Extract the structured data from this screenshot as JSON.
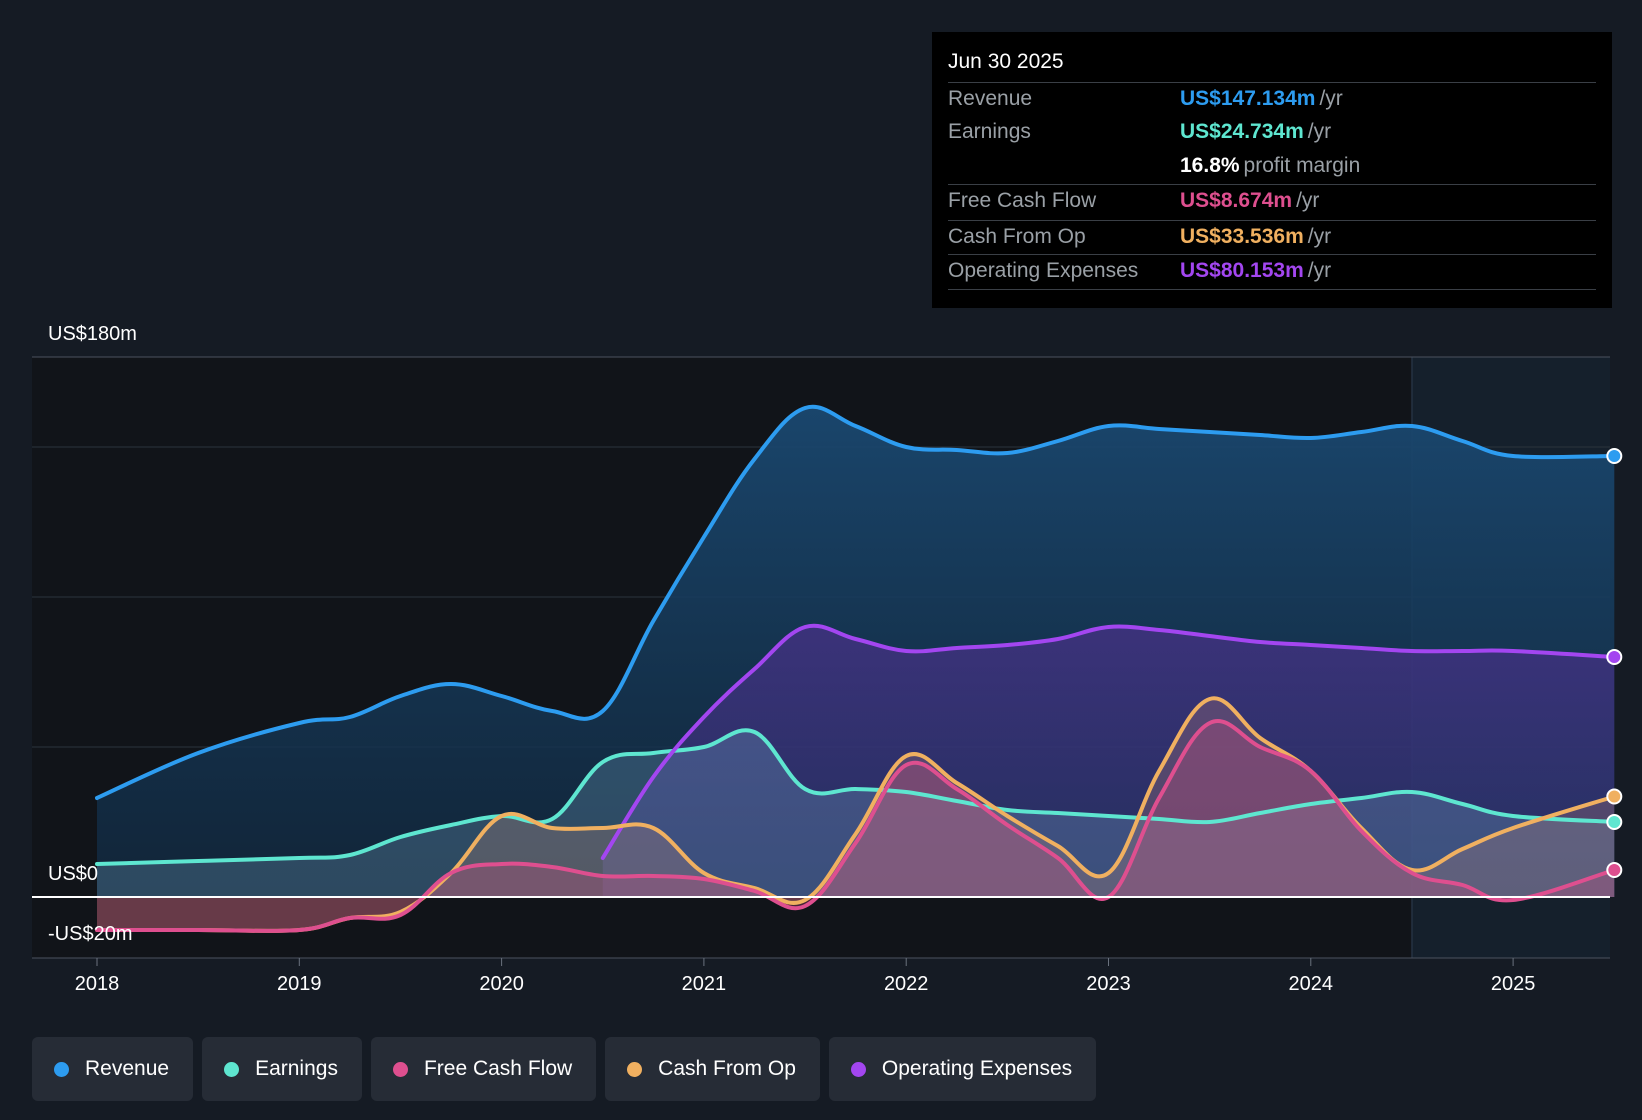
{
  "tooltip": {
    "date": "Jun 30 2025",
    "rows": [
      {
        "label": "Revenue",
        "value": "US$147.134m",
        "suffix": "/yr",
        "color": "#2d9cf0"
      },
      {
        "label": "Earnings",
        "value": "US$24.734m",
        "suffix": "/yr",
        "color": "#5ee6d0"
      },
      {
        "label": "",
        "value": "16.8%",
        "suffix": "profit margin",
        "color": "#ffffff"
      },
      {
        "label": "Free Cash Flow",
        "value": "US$8.674m",
        "suffix": "/yr",
        "color": "#de4f8f"
      },
      {
        "label": "Cash From Op",
        "value": "US$33.536m",
        "suffix": "/yr",
        "color": "#f0b060"
      },
      {
        "label": "Operating Expenses",
        "value": "US$80.153m",
        "suffix": "/yr",
        "color": "#a346f0"
      }
    ]
  },
  "legend": [
    {
      "label": "Revenue",
      "color": "#2d9cf0"
    },
    {
      "label": "Earnings",
      "color": "#5ee6d0"
    },
    {
      "label": "Free Cash Flow",
      "color": "#de4f8f"
    },
    {
      "label": "Cash From Op",
      "color": "#f0b060"
    },
    {
      "label": "Operating Expenses",
      "color": "#a346f0"
    }
  ],
  "chart_data": {
    "type": "area",
    "title": "",
    "xlabel": "",
    "ylabel": "",
    "x_ticks": [
      "2018",
      "2019",
      "2020",
      "2021",
      "2022",
      "2023",
      "2024",
      "2025"
    ],
    "y_axis_labels": {
      "top": "US$180m",
      "zero": "US$0",
      "bottom": "-US$20m"
    },
    "ylim": [
      -20,
      180
    ],
    "xlim": [
      2017.7,
      2025.5
    ],
    "forecast_start": 2024.5,
    "series": [
      {
        "name": "Revenue",
        "color": "#2d9cf0",
        "x": [
          2018,
          2018.5,
          2019,
          2019.25,
          2019.5,
          2019.75,
          2020,
          2020.25,
          2020.5,
          2020.75,
          2021,
          2021.25,
          2021.5,
          2021.75,
          2022,
          2022.25,
          2022.5,
          2022.75,
          2023,
          2023.25,
          2023.5,
          2023.75,
          2024,
          2024.25,
          2024.5,
          2024.75,
          2025,
          2025.5
        ],
        "values": [
          33,
          48,
          58,
          60,
          67,
          71,
          67,
          62,
          62,
          92,
          120,
          146,
          163,
          157,
          150,
          149,
          148,
          152,
          157,
          156,
          155,
          154,
          153,
          155,
          157,
          152,
          147,
          147
        ]
      },
      {
        "name": "Earnings",
        "color": "#5ee6d0",
        "x": [
          2018,
          2018.5,
          2019,
          2019.25,
          2019.5,
          2019.75,
          2020,
          2020.25,
          2020.5,
          2020.75,
          2021,
          2021.25,
          2021.5,
          2021.75,
          2022,
          2022.25,
          2022.5,
          2022.75,
          2023,
          2023.25,
          2023.5,
          2023.75,
          2024,
          2024.25,
          2024.5,
          2024.75,
          2025,
          2025.5
        ],
        "values": [
          11,
          12,
          13,
          14,
          20,
          24,
          27,
          26,
          45,
          48,
          50,
          55,
          36,
          36,
          35,
          32,
          29,
          28,
          27,
          26,
          25,
          28,
          31,
          33,
          35,
          31,
          27,
          25
        ]
      },
      {
        "name": "Free Cash Flow",
        "color": "#de4f8f",
        "x": [
          2018,
          2018.5,
          2019,
          2019.25,
          2019.5,
          2019.75,
          2020,
          2020.25,
          2020.5,
          2020.75,
          2021,
          2021.25,
          2021.5,
          2021.75,
          2022,
          2022.25,
          2022.5,
          2022.75,
          2023,
          2023.25,
          2023.5,
          2023.75,
          2024,
          2024.25,
          2024.5,
          2024.75,
          2025,
          2025.5
        ],
        "values": [
          -11,
          -11,
          -11,
          -7,
          -6,
          8,
          11,
          10,
          7,
          7,
          6,
          2,
          -3,
          18,
          44,
          36,
          24,
          13,
          0,
          33,
          58,
          50,
          42,
          22,
          8,
          4,
          -1,
          9
        ]
      },
      {
        "name": "Cash From Op",
        "color": "#f0b060",
        "x": [
          2018,
          2018.5,
          2019,
          2019.25,
          2019.5,
          2019.75,
          2020,
          2020.25,
          2020.5,
          2020.75,
          2021,
          2021.25,
          2021.5,
          2021.75,
          2022,
          2022.25,
          2022.5,
          2022.75,
          2023,
          2023.25,
          2023.5,
          2023.75,
          2024,
          2024.25,
          2024.5,
          2024.75,
          2025,
          2025.5
        ],
        "values": [
          -11,
          -11,
          -11,
          -7,
          -5,
          8,
          27,
          23,
          23,
          23,
          8,
          3,
          -1,
          21,
          47,
          38,
          27,
          17,
          8,
          42,
          66,
          53,
          42,
          23,
          9,
          16,
          23,
          33.5
        ]
      },
      {
        "name": "Operating Expenses",
        "color": "#a346f0",
        "x": [
          2020.5,
          2020.75,
          2021,
          2021.25,
          2021.5,
          2021.75,
          2022,
          2022.25,
          2022.5,
          2022.75,
          2023,
          2023.25,
          2023.5,
          2023.75,
          2024,
          2024.25,
          2024.5,
          2024.75,
          2025,
          2025.5
        ],
        "values": [
          13,
          40,
          60,
          76,
          90,
          86,
          82,
          83,
          84,
          86,
          90,
          89,
          87,
          85,
          84,
          83,
          82,
          82,
          82,
          80
        ]
      }
    ]
  }
}
